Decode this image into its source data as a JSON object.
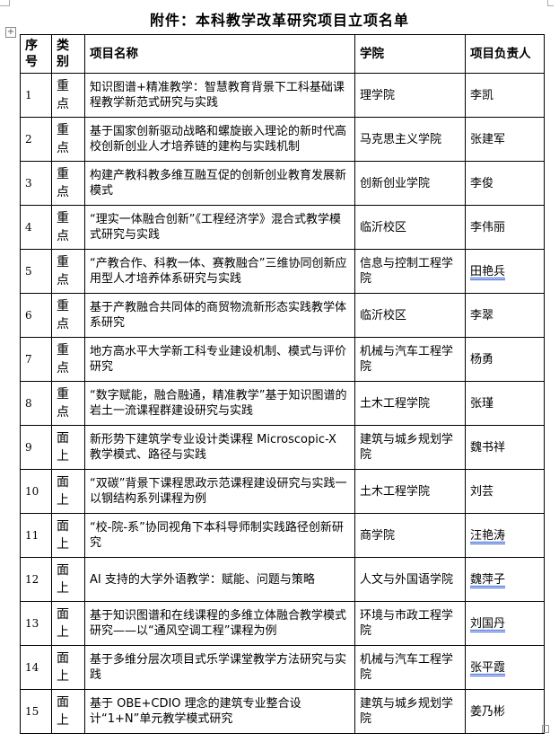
{
  "title": "附件：本科教学改革研究项目立项名单",
  "headers": {
    "no": "序号",
    "category": "类别",
    "name": "项目名称",
    "college": "学院",
    "leader": "项目负责人"
  },
  "rows": [
    {
      "no": "1",
      "category": "重点",
      "name": "知识图谱+精准教学：智慧教育背景下工科基础课程教学新范式研究与实践",
      "college": "理学院",
      "leader": "李凯",
      "leader_flagged": false
    },
    {
      "no": "2",
      "category": "重点",
      "name": "基于国家创新驱动战略和螺旋嵌入理论的新时代高校创新创业人才培养链的建构与实践机制",
      "college": "马克思主义学院",
      "leader": "张建军",
      "leader_flagged": false
    },
    {
      "no": "3",
      "category": "重点",
      "name": "构建产教科教多维互融互促的创新创业教育发展新模式",
      "college": "创新创业学院",
      "leader": "李俊",
      "leader_flagged": false
    },
    {
      "no": "4",
      "category": "重点",
      "name": "“理实一体融合创新”《工程经济学》混合式教学模式研究与实践",
      "college": "临沂校区",
      "leader": "李伟丽",
      "leader_flagged": false
    },
    {
      "no": "5",
      "category": "重点",
      "name": "“产教合作、科教一体、赛教融合”三维协同创新应用型人才培养体系研究与实践",
      "college": "信息与控制工程学院",
      "leader": "田艳兵",
      "leader_flagged": true
    },
    {
      "no": "6",
      "category": "重点",
      "name": "基于产教融合共同体的商贸物流新形态实践教学体系研究",
      "college": "临沂校区",
      "leader": "李翠",
      "leader_flagged": false
    },
    {
      "no": "7",
      "category": "重点",
      "name": "地方高水平大学新工科专业建设机制、模式与评价研究",
      "college": "机械与汽车工程学院",
      "leader": "杨勇",
      "leader_flagged": false
    },
    {
      "no": "8",
      "category": "重点",
      "name": "“数字赋能，融合融通，精准教学”基于知识图谱的岩土一流课程群建设研究与实践",
      "college": "土木工程学院",
      "leader": "张瑾",
      "leader_flagged": false
    },
    {
      "no": "9",
      "category": "面上",
      "name": "新形势下建筑学专业设计类课程 Microscopic-X 教学模式、路径与实践",
      "college": "建筑与城乡规划学院",
      "leader": "魏书祥",
      "leader_flagged": false
    },
    {
      "no": "10",
      "category": "面上",
      "name": "“双碳”背景下课程思政示范课程建设研究与实践一以钢结构系列课程为例",
      "college": "土木工程学院",
      "leader": "刘芸",
      "leader_flagged": false
    },
    {
      "no": "11",
      "category": "面上",
      "name": "“校-院-系”协同视角下本科导师制实践路径创新研究",
      "college": "商学院",
      "leader": "汪艳涛",
      "leader_flagged": true
    },
    {
      "no": "12",
      "category": "面上",
      "name": "AI 支持的大学外语教学：赋能、问题与策略",
      "college": "人文与外国语学院",
      "leader": "魏萍子",
      "leader_flagged": true
    },
    {
      "no": "13",
      "category": "面上",
      "name": "基于知识图谱和在线课程的多维立体融合教学模式研究——以“通风空调工程”课程为例",
      "college": "环境与市政工程学院",
      "leader": "刘国丹",
      "leader_flagged": true
    },
    {
      "no": "14",
      "category": "面上",
      "name": "基于多维分层次项目式乐学课堂教学方法研究与实践",
      "college": "机械与汽车工程学院",
      "leader": "张平霞",
      "leader_flagged": true
    },
    {
      "no": "15",
      "category": "面上",
      "name": "基于 OBE+CDIO 理念的建筑专业整合设计“1+N”单元教学模式研究",
      "college": "建筑与城乡规划学院",
      "leader": "姜乃彬",
      "leader_flagged": false
    }
  ]
}
